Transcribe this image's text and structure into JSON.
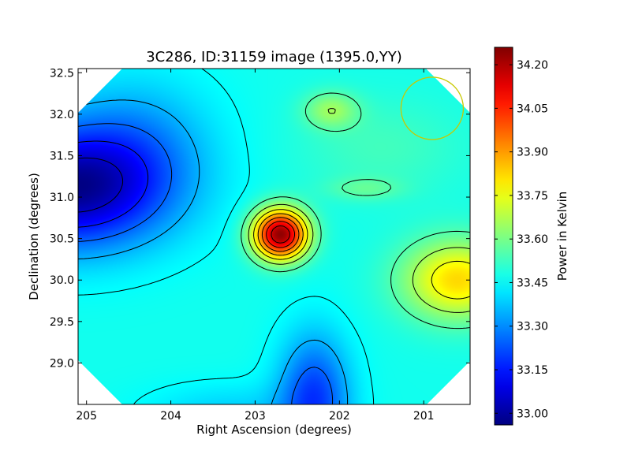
{
  "chart_data": {
    "type": "heatmap",
    "title": "3C286, ID:31159 image (1395.0,YY)",
    "xlabel": "Right Ascension (degrees)",
    "ylabel": "Declination (degrees)",
    "xlim": [
      205.1,
      200.45
    ],
    "ylim": [
      28.5,
      32.55
    ],
    "x_ticks": [
      205,
      204,
      203,
      202,
      201
    ],
    "x_tick_labels": [
      "205",
      "204",
      "203",
      "202",
      "201"
    ],
    "y_ticks": [
      29.0,
      29.5,
      30.0,
      30.5,
      31.0,
      31.5,
      32.0,
      32.5
    ],
    "y_tick_labels": [
      "29.0",
      "29.5",
      "30.0",
      "30.5",
      "31.0",
      "31.5",
      "32.0",
      "32.5"
    ],
    "colorbar": {
      "label": "Power in Kelvin",
      "range": [
        32.96,
        34.26
      ],
      "ticks": [
        33.0,
        33.15,
        33.3,
        33.45,
        33.6,
        33.75,
        33.9,
        34.05,
        34.2
      ],
      "tick_labels": [
        "33.00",
        "33.15",
        "33.30",
        "33.45",
        "33.60",
        "33.75",
        "33.90",
        "34.05",
        "34.20"
      ],
      "colormap": "jet"
    },
    "field": {
      "background_kelvin": 33.47,
      "features": [
        {
          "kind": "peak",
          "ra": 202.7,
          "dec": 30.55,
          "kelvin": 34.24
        },
        {
          "kind": "minimum",
          "ra": 205.0,
          "dec": 31.0,
          "kelvin": 33.0
        },
        {
          "kind": "minimum",
          "ra": 202.3,
          "dec": 28.6,
          "kelvin": 33.2
        },
        {
          "kind": "local-maximum",
          "ra": 200.6,
          "dec": 30.0,
          "kelvin": 33.82
        },
        {
          "kind": "local-maximum",
          "ra": 202.1,
          "dec": 32.05,
          "kelvin": 33.63
        },
        {
          "kind": "local-maximum",
          "ra": 201.7,
          "dec": 31.1,
          "kelvin": 33.55
        }
      ]
    },
    "beam_circle": {
      "ra": 200.9,
      "dec": 32.07,
      "radius_deg": 0.37,
      "color": "#c8c800"
    },
    "colors": {
      "contour": "#000000",
      "beam": "#c8c800",
      "mask": "#ffffff"
    }
  }
}
